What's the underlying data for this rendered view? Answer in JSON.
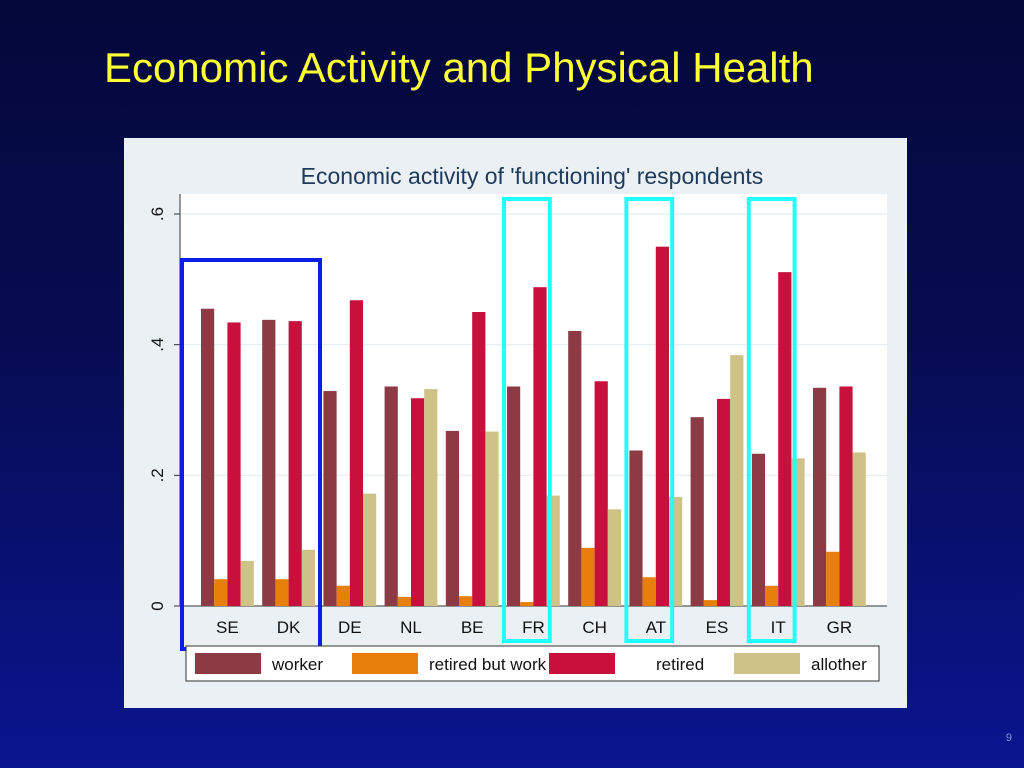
{
  "slide": {
    "title": "Economic Activity and Physical Health",
    "page_number": "9"
  },
  "chart_data": {
    "type": "bar",
    "title": "Economic activity of 'functioning' respondents",
    "xlabel": "",
    "ylabel": "",
    "ylim": [
      0,
      0.6
    ],
    "yticks": [
      0,
      0.2,
      0.4,
      0.6
    ],
    "ytick_labels": [
      "0",
      ".2",
      ".4",
      ".6"
    ],
    "grid": true,
    "legend_position": "bottom",
    "categories": [
      "SE",
      "DK",
      "DE",
      "NL",
      "BE",
      "FR",
      "CH",
      "AT",
      "ES",
      "IT",
      "GR"
    ],
    "series": [
      {
        "name": "worker",
        "color": "#8c3a44",
        "values": [
          0.455,
          0.438,
          0.329,
          0.336,
          0.268,
          0.336,
          0.421,
          0.238,
          0.289,
          0.233,
          0.334
        ]
      },
      {
        "name": "retired but work",
        "color": "#e87f0c",
        "values": [
          0.041,
          0.041,
          0.031,
          0.014,
          0.015,
          0.006,
          0.089,
          0.044,
          0.009,
          0.031,
          0.083
        ]
      },
      {
        "name": "retired",
        "color": "#c8103c",
        "values": [
          0.434,
          0.436,
          0.468,
          0.318,
          0.45,
          0.488,
          0.344,
          0.55,
          0.317,
          0.511,
          0.336
        ]
      },
      {
        "name": "allother",
        "color": "#cec286",
        "values": [
          0.069,
          0.086,
          0.172,
          0.332,
          0.267,
          0.169,
          0.148,
          0.167,
          0.384,
          0.226,
          0.235
        ]
      }
    ],
    "highlights": [
      {
        "categories": [
          "SE",
          "DK"
        ],
        "color": "#0a1ee6"
      },
      {
        "categories": [
          "FR"
        ],
        "color": "#22ffff"
      },
      {
        "categories": [
          "AT"
        ],
        "color": "#22ffff"
      },
      {
        "categories": [
          "IT"
        ],
        "color": "#22ffff"
      }
    ]
  }
}
